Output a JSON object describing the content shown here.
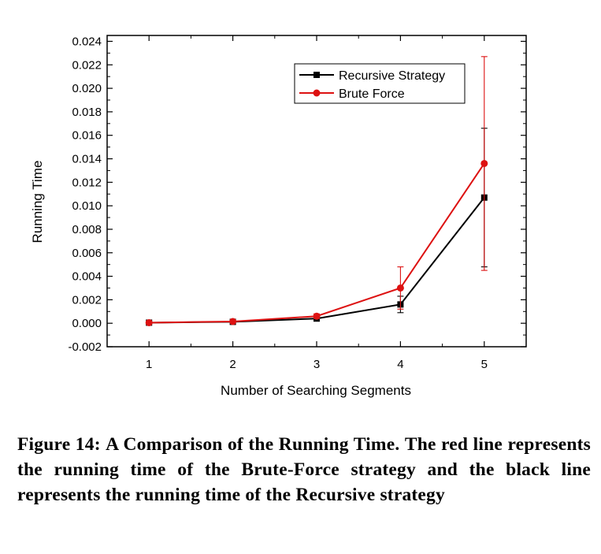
{
  "chart_data": {
    "type": "line",
    "xlabel": "Number of Searching Segments",
    "ylabel": "Running Time",
    "x": [
      1,
      2,
      3,
      4,
      5
    ],
    "xticks": [
      "1",
      "2",
      "3",
      "4",
      "5"
    ],
    "xlim": [
      0.5,
      5.5
    ],
    "ylim": [
      -0.002,
      0.0245
    ],
    "yticks": [
      "-0.002",
      "0.000",
      "0.002",
      "0.004",
      "0.006",
      "0.008",
      "0.010",
      "0.012",
      "0.014",
      "0.016",
      "0.018",
      "0.020",
      "0.022",
      "0.024"
    ],
    "legend_position": "top-right",
    "grid": false,
    "series": [
      {
        "name": "Recursive Strategy",
        "color": "#000000",
        "marker": "square",
        "values": [
          5e-05,
          0.00012,
          0.0004,
          0.0016,
          0.0107
        ],
        "error": [
          2e-05,
          3e-05,
          0.0001,
          0.0007,
          0.0059
        ]
      },
      {
        "name": "Brute Force",
        "color": "#dd1111",
        "marker": "circle",
        "values": [
          5e-05,
          0.00015,
          0.0006,
          0.003,
          0.0136
        ],
        "error": [
          2e-05,
          4e-05,
          0.0002,
          0.0018,
          0.0091
        ]
      }
    ]
  },
  "caption": {
    "label": "Figure 14:",
    "title": "A Comparison of the Running Time.",
    "body": "The red line represents the running time of the Brute-Force strategy and the black line represents the running time of the Recursive strategy"
  }
}
